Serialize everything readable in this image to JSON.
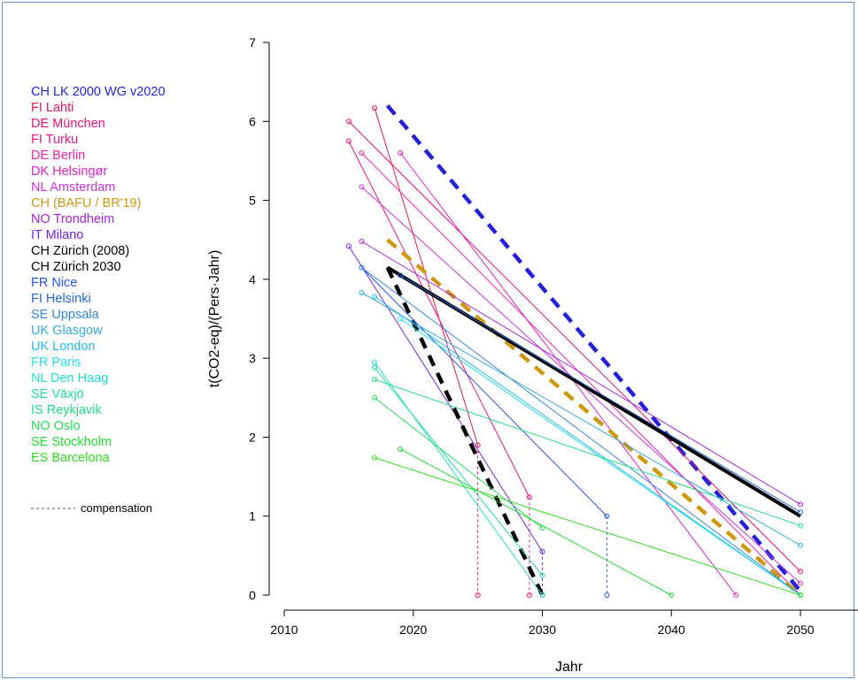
{
  "chart_data": {
    "type": "line",
    "title": "",
    "xlabel": "Jahr",
    "ylabel": "t(CO2-eq)/(Pers·Jahr)",
    "xlim": [
      2010,
      2055
    ],
    "ylim": [
      0,
      7
    ],
    "xticks": [
      2010,
      2020,
      2030,
      2040,
      2050
    ],
    "yticks": [
      0,
      1,
      2,
      3,
      4,
      5,
      6,
      7
    ],
    "grid": false,
    "legend_placement": "left",
    "compensation_label": "compensation",
    "series": [
      {
        "name": "CH LK 2000 WG v2020",
        "color": "#2222dd",
        "style": "dashed-thick",
        "points": [
          [
            2018,
            6.2
          ],
          [
            2050,
            0.05
          ]
        ]
      },
      {
        "name": "FI Lahti",
        "color": "#e8174a",
        "style": "thin",
        "points": [
          [
            2017,
            6.17
          ],
          [
            2025,
            1.9
          ]
        ],
        "compensation": [
          2025,
          0
        ]
      },
      {
        "name": "DE München",
        "color": "#ee1177",
        "style": "thin",
        "points": [
          [
            2015,
            6.0
          ],
          [
            2050,
            0.3
          ]
        ]
      },
      {
        "name": "FI Turku",
        "color": "#ee1188",
        "style": "thin",
        "points": [
          [
            2015,
            5.75
          ],
          [
            2029,
            1.24
          ]
        ],
        "compensation": [
          2029,
          0
        ]
      },
      {
        "name": "DE Berlin",
        "color": "#ee22aa",
        "style": "thin",
        "points": [
          [
            2016,
            5.6
          ],
          [
            2050,
            0.0
          ]
        ]
      },
      {
        "name": "DK Helsingør",
        "color": "#dd22cc",
        "style": "thin",
        "points": [
          [
            2019,
            5.6
          ],
          [
            2045,
            0.0
          ]
        ]
      },
      {
        "name": "NL Amsterdam",
        "color": "#cc33dd",
        "style": "thin",
        "points": [
          [
            2016,
            5.17
          ],
          [
            2050,
            0.15
          ]
        ]
      },
      {
        "name": "CH (BAFU / BR'19)",
        "color": "#cc9911",
        "style": "dashed-thick",
        "points": [
          [
            2018,
            4.5
          ],
          [
            2050,
            0.0
          ]
        ]
      },
      {
        "name": "NO Trondheim",
        "color": "#aa22dd",
        "style": "thin",
        "points": [
          [
            2016,
            4.48
          ],
          [
            2050,
            1.15
          ]
        ]
      },
      {
        "name": "IT Milano",
        "color": "#7722dd",
        "style": "thin",
        "points": [
          [
            2015,
            4.42
          ],
          [
            2030,
            0.55
          ]
        ],
        "compensation": [
          2030,
          0
        ]
      },
      {
        "name": "CH Zürich (2008)",
        "color": "#000000",
        "style": "solid-thick",
        "points": [
          [
            2018,
            4.15
          ],
          [
            2050,
            1.0
          ]
        ]
      },
      {
        "name": "CH Zürich 2030",
        "color": "#000000",
        "style": "dashed-thick",
        "points": [
          [
            2018,
            4.15
          ],
          [
            2030,
            0.0
          ]
        ]
      },
      {
        "name": "FR Nice",
        "color": "#2255ee",
        "style": "thin",
        "points": [
          [
            2016,
            4.15
          ],
          [
            2035,
            1.0
          ]
        ],
        "compensation": [
          2035,
          0
        ]
      },
      {
        "name": "FI Helsinki",
        "color": "#2266dd",
        "style": "thin",
        "points": [
          [
            2019,
            4.05
          ],
          [
            2050,
            1.05
          ]
        ]
      },
      {
        "name": "SE Uppsala",
        "color": "#3388dd",
        "style": "thin",
        "points": [
          [
            2016,
            4.15
          ],
          [
            2050,
            0.0
          ]
        ]
      },
      {
        "name": "UK Glasgow",
        "color": "#33aadd",
        "style": "thin",
        "points": [
          [
            2016,
            3.83
          ],
          [
            2050,
            0.63
          ]
        ]
      },
      {
        "name": "UK London",
        "color": "#22bbee",
        "style": "thin",
        "points": [
          [
            2017,
            3.78
          ],
          [
            2050,
            0.0
          ]
        ]
      },
      {
        "name": "FR Paris",
        "color": "#22ddee",
        "style": "thin",
        "points": [
          [
            2019,
            3.5
          ],
          [
            2050,
            0.0
          ]
        ]
      },
      {
        "name": "NL Den Haag",
        "color": "#22ddcc",
        "style": "thin",
        "points": [
          [
            2017,
            2.95
          ],
          [
            2030,
            0.0
          ]
        ]
      },
      {
        "name": "SE Växjö",
        "color": "#22ddaa",
        "style": "thin",
        "points": [
          [
            2017,
            2.88
          ],
          [
            2030,
            0.25
          ]
        ]
      },
      {
        "name": "IS Reykjavik",
        "color": "#22dd88",
        "style": "thin",
        "points": [
          [
            2017,
            2.73
          ],
          [
            2050,
            0.88
          ]
        ]
      },
      {
        "name": "NO Oslo",
        "color": "#22dd55",
        "style": "thin",
        "points": [
          [
            2017,
            2.5
          ],
          [
            2030,
            0.85
          ]
        ]
      },
      {
        "name": "SE Stockholm",
        "color": "#22dd33",
        "style": "thin",
        "points": [
          [
            2019,
            1.85
          ],
          [
            2040,
            0.0
          ]
        ]
      },
      {
        "name": "ES Barcelona",
        "color": "#33dd22",
        "style": "thin",
        "points": [
          [
            2017,
            1.74
          ],
          [
            2050,
            0.0
          ]
        ]
      }
    ]
  }
}
